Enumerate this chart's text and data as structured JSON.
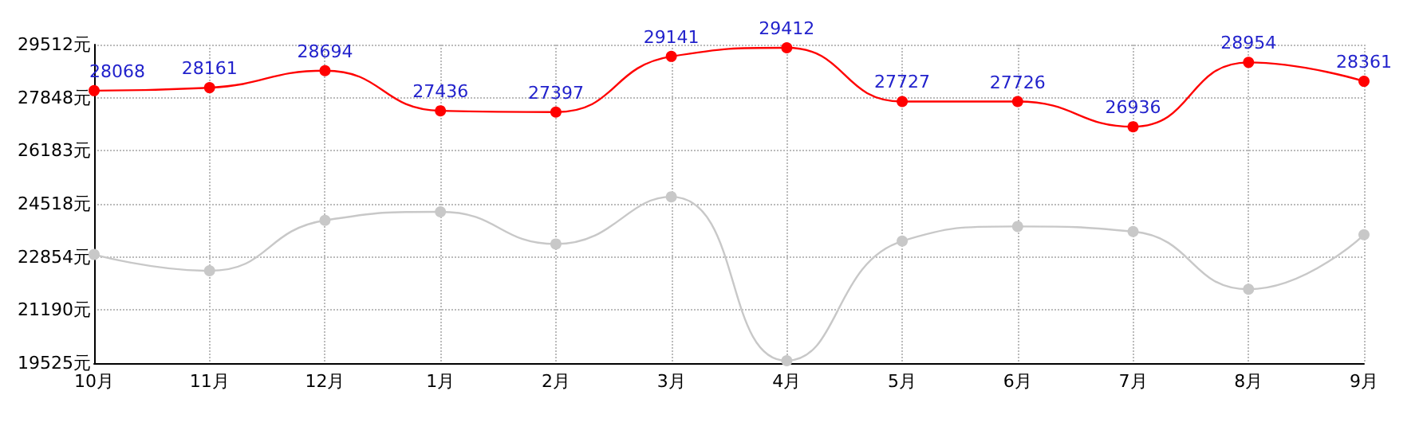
{
  "chart_data": {
    "type": "line",
    "categories": [
      "10月",
      "11月",
      "12月",
      "1月",
      "2月",
      "3月",
      "4月",
      "5月",
      "6月",
      "7月",
      "8月",
      "9月"
    ],
    "series": [
      {
        "color": "#ff0000",
        "values": [
          28068,
          28161,
          28694,
          27436,
          27397,
          29141,
          29412,
          27727,
          27726,
          26936,
          28954,
          28361
        ],
        "value_labels": [
          "28068",
          "28161",
          "28694",
          "27436",
          "27397",
          "29141",
          "29412",
          "27727",
          "27726",
          "26936",
          "28954",
          "28361"
        ]
      },
      {
        "color": "#c8c8c8",
        "values": [
          22930,
          22420,
          24000,
          24270,
          23260,
          24740,
          19600,
          23350,
          23810,
          23650,
          21840,
          23550
        ]
      }
    ],
    "ylim": [
      19525,
      29512
    ],
    "yticks": [
      {
        "value": 19525,
        "label": "19525元"
      },
      {
        "value": 21190,
        "label": "21190元"
      },
      {
        "value": 22854,
        "label": "22854元"
      },
      {
        "value": 24518,
        "label": "24518元"
      },
      {
        "value": 26183,
        "label": "26183元"
      },
      {
        "value": 27848,
        "label": "27848元"
      },
      {
        "value": 29512,
        "label": "29512元"
      }
    ],
    "grid": true,
    "marker": "circle",
    "line_style": "solid"
  }
}
